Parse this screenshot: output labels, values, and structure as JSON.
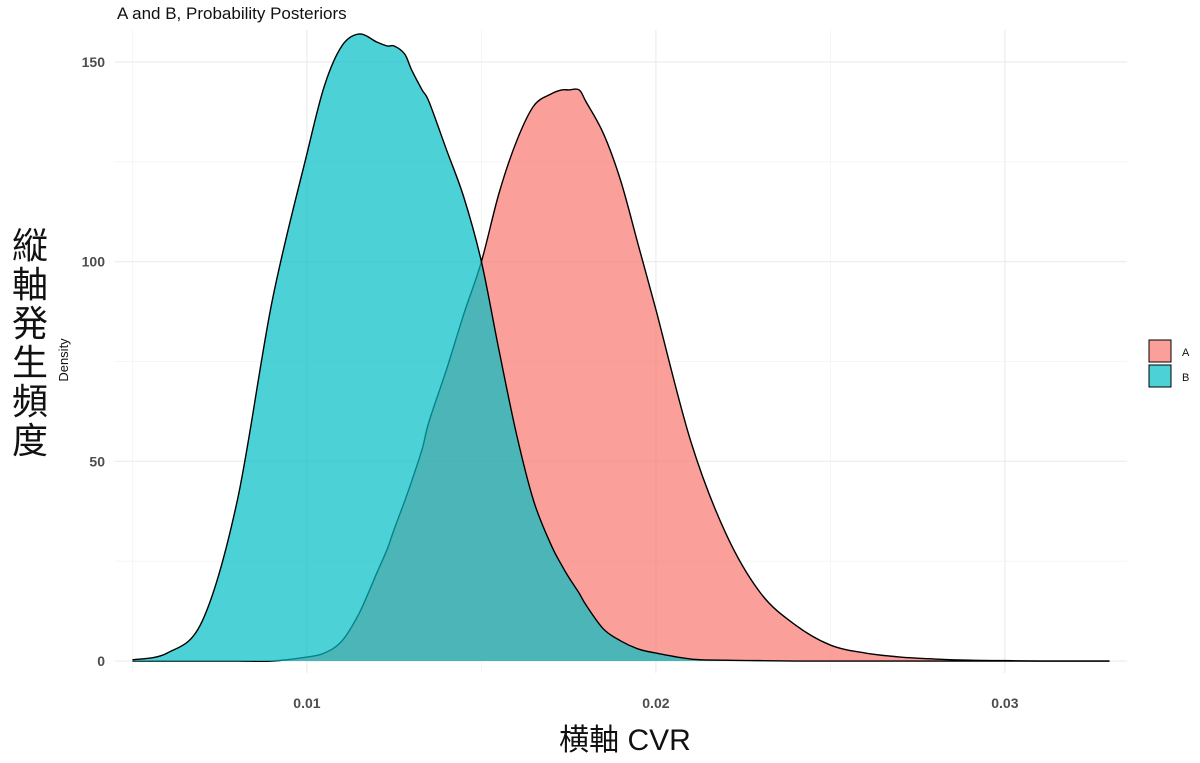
{
  "chart_data": {
    "type": "area",
    "title": "A and B, Probability Posteriors",
    "xlabel": "横軸  CVR",
    "ylabel": "Density",
    "ylabel_big": "縦軸 発生頻度",
    "xlim": [
      0.0045,
      0.0335
    ],
    "ylim": [
      -3,
      158
    ],
    "x_ticks": [
      "0.01",
      "0.02",
      "0.03"
    ],
    "y_ticks": [
      "0",
      "50",
      "100",
      "150"
    ],
    "grid": true,
    "legend_position": "right",
    "x": [
      0.005,
      0.006,
      0.007,
      0.008,
      0.009,
      0.01,
      0.0105,
      0.011,
      0.0115,
      0.012,
      0.0123,
      0.0125,
      0.0128,
      0.013,
      0.0133,
      0.0135,
      0.014,
      0.0145,
      0.015,
      0.0155,
      0.016,
      0.0165,
      0.017,
      0.0173,
      0.0175,
      0.0178,
      0.018,
      0.0185,
      0.019,
      0.0195,
      0.02,
      0.021,
      0.022,
      0.023,
      0.024,
      0.025,
      0.026,
      0.027,
      0.028,
      0.029,
      0.03,
      0.031,
      0.033
    ],
    "series": [
      {
        "name": "A",
        "color": "#F8766D",
        "values": [
          0,
          0,
          0,
          0,
          0,
          1,
          2,
          5,
          12,
          22,
          28,
          33,
          40,
          45,
          53,
          60,
          73,
          87,
          100,
          117,
          130,
          139,
          142,
          143,
          143,
          143,
          140,
          132,
          120,
          104,
          88,
          55,
          32,
          17,
          9,
          4,
          2,
          1,
          0.5,
          0.2,
          0.1,
          0,
          0
        ]
      },
      {
        "name": "B",
        "color": "#00BFC4",
        "values": [
          0.3,
          2,
          10,
          40,
          90,
          127,
          144,
          154,
          157,
          155,
          154,
          154,
          152,
          148,
          143,
          140,
          128,
          116,
          100,
          78,
          57,
          40,
          29,
          24,
          21,
          17,
          14,
          8,
          5,
          3,
          2,
          0.5,
          0.2,
          0.1,
          0,
          0,
          0,
          0,
          0,
          0,
          0,
          0,
          0
        ]
      }
    ]
  }
}
